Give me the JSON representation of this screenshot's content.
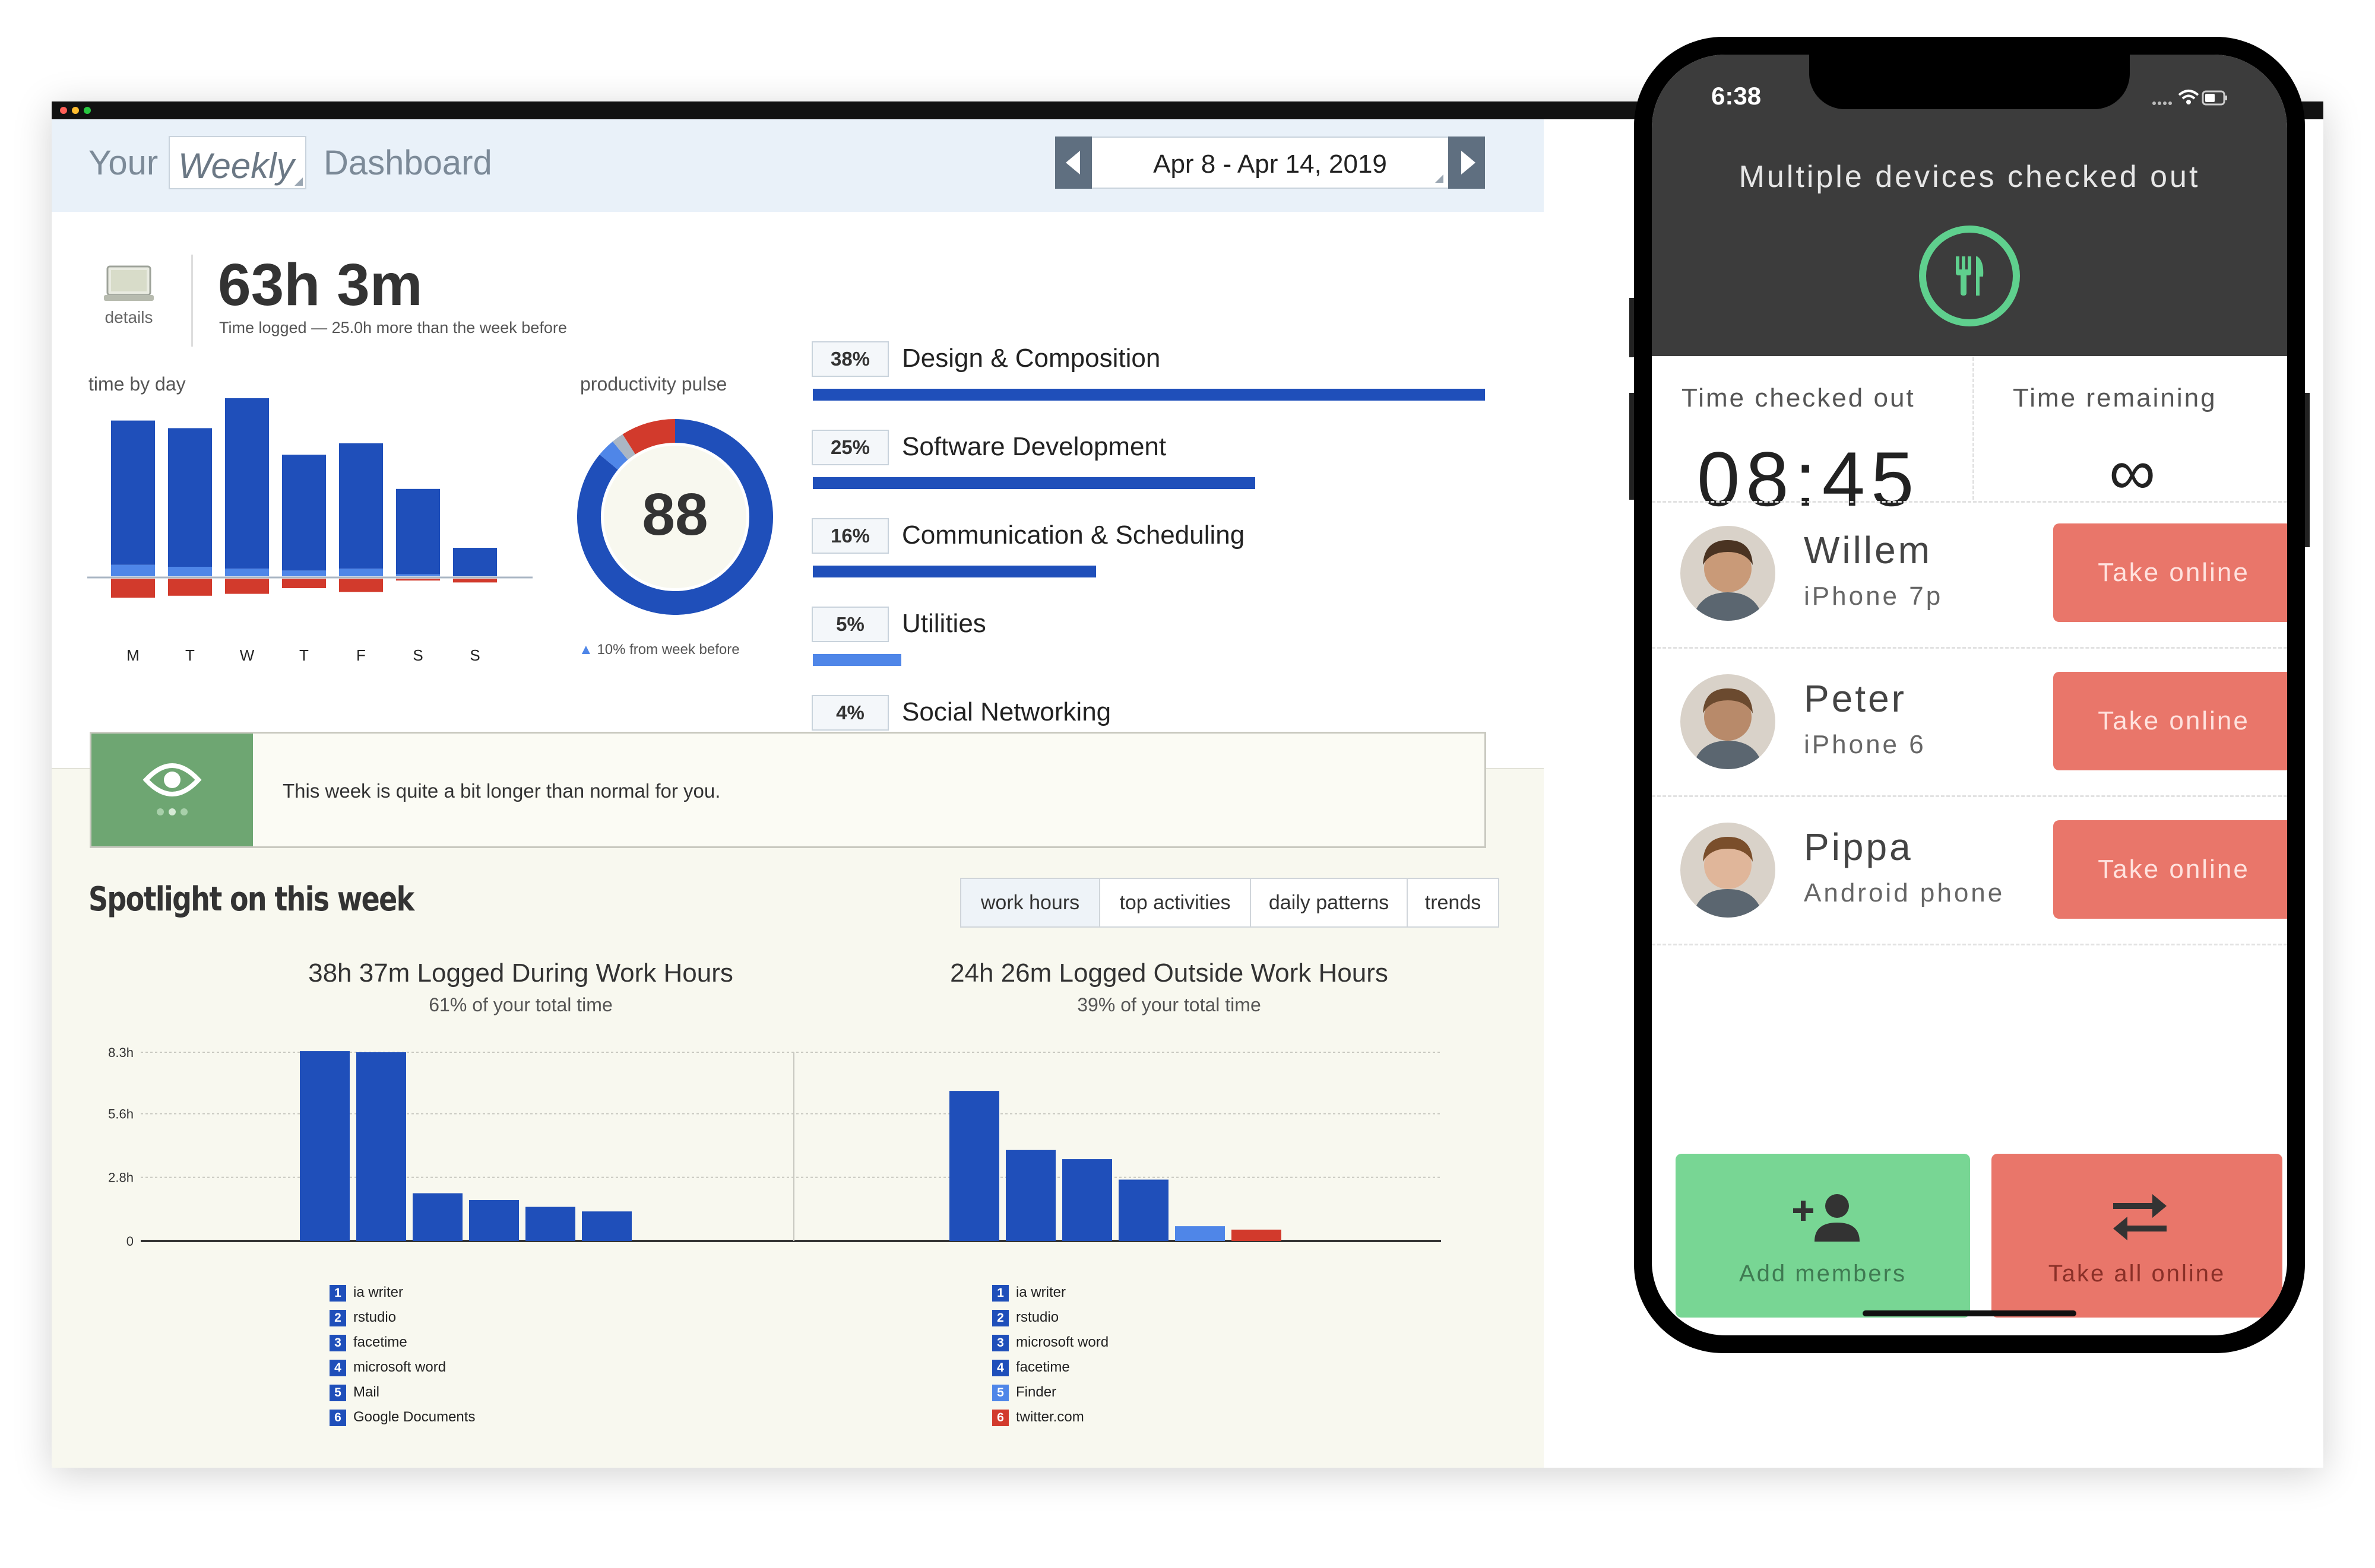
{
  "dashboard": {
    "header": {
      "your": "Your",
      "period": "Weekly",
      "dashboard": "Dashboard",
      "date_range": "Apr 8 - Apr 14, 2019"
    },
    "summary": {
      "details_label": "details",
      "total_time": "63h 3m",
      "subtitle": "Time logged — 25.0h more than the week before"
    },
    "time_by_day": {
      "label": "time by day",
      "days": [
        "M",
        "T",
        "W",
        "T",
        "F",
        "S",
        "S"
      ],
      "productive": [
        7.6,
        7.3,
        9.0,
        6.1,
        6.6,
        4.5,
        1.5
      ],
      "neutral": [
        0.6,
        0.5,
        0.4,
        0.3,
        0.4,
        0.1,
        0.0
      ],
      "distracting": [
        1.0,
        0.9,
        0.8,
        0.5,
        0.7,
        0.1,
        0.2
      ]
    },
    "productivity_pulse": {
      "label": "productivity pulse",
      "score": "88",
      "change_text": "10% from week before",
      "segments": [
        {
          "value": 86,
          "color": "#1f4fba"
        },
        {
          "value": 3,
          "color": "#4f86e8"
        },
        {
          "value": 2,
          "color": "#aab6c4"
        },
        {
          "value": 9,
          "color": "#d23a2c"
        }
      ]
    },
    "categories": [
      {
        "pct": "38%",
        "name": "Design & Composition",
        "value": 38,
        "color": "#1f4fba"
      },
      {
        "pct": "25%",
        "name": "Software Development",
        "value": 25,
        "color": "#1f4fba"
      },
      {
        "pct": "16%",
        "name": "Communication & Scheduling",
        "value": 16,
        "color": "#1f4fba"
      },
      {
        "pct": "5%",
        "name": "Utilities",
        "value": 5,
        "color": "#4f86e8"
      },
      {
        "pct": "4%",
        "name": "Social Networking",
        "value": 4,
        "color": "#d23a2c"
      }
    ],
    "alert_text": "This week is quite a bit longer than normal for you.",
    "spotlight": {
      "title": "Spotlight on this week",
      "tabs": [
        "work hours",
        "top activities",
        "daily patterns",
        "trends"
      ]
    }
  },
  "chart_data": [
    {
      "type": "bar",
      "title": "38h 37m Logged During Work Hours",
      "subtitle": "61% of your total time",
      "y_ticks": [
        "8.3h",
        "5.6h",
        "2.8h",
        "0"
      ],
      "ylim": [
        0,
        8.3
      ],
      "categories": [
        "ia writer",
        "rstudio",
        "facetime",
        "microsoft word",
        "Mail",
        "Google Documents"
      ],
      "values": [
        8.35,
        8.3,
        2.1,
        1.8,
        1.5,
        1.3
      ],
      "colors": [
        "#1f4fba",
        "#1f4fba",
        "#1f4fba",
        "#1f4fba",
        "#1f4fba",
        "#1f4fba"
      ]
    },
    {
      "type": "bar",
      "title": "24h 26m Logged Outside Work Hours",
      "subtitle": "39% of your total time",
      "ylim": [
        0,
        8.3
      ],
      "categories": [
        "ia writer",
        "rstudio",
        "microsoft word",
        "facetime",
        "Finder",
        "twitter.com"
      ],
      "values": [
        6.6,
        4.0,
        3.6,
        2.7,
        0.65,
        0.5
      ],
      "colors": [
        "#1f4fba",
        "#1f4fba",
        "#1f4fba",
        "#1f4fba",
        "#4f86e8",
        "#d23a2c"
      ]
    }
  ],
  "phone": {
    "clock": "6:38",
    "title": "Multiple devices checked out",
    "time_checked_out_label": "Time checked out",
    "time_checked_out": "08:45",
    "time_remaining_label": "Time remaining",
    "time_remaining": "∞",
    "members": [
      {
        "name": "Willem",
        "device": "iPhone 7p",
        "action": "Take online"
      },
      {
        "name": "Peter",
        "device": "iPhone 6",
        "action": "Take online"
      },
      {
        "name": "Pippa",
        "device": "Android phone",
        "action": "Take online"
      }
    ],
    "add_members_label": "Add members",
    "take_all_label": "Take all online",
    "colors": {
      "green": "#78d694",
      "red": "#e9766a",
      "dark": "#3c3c3c"
    }
  }
}
